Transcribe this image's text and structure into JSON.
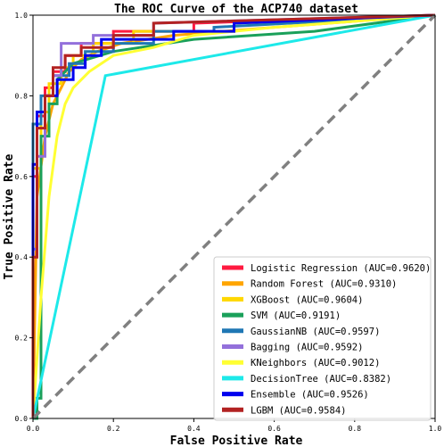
{
  "chart_data": {
    "type": "line",
    "title": "The ROC Curve of the ACP740 dataset",
    "xlabel": "False Positive Rate",
    "ylabel": "True Positive Rate",
    "xlim": [
      0,
      1
    ],
    "ylim": [
      0,
      1
    ],
    "xticks": [
      "0.0",
      "0.2",
      "0.4",
      "0.6",
      "0.8",
      "1.0"
    ],
    "yticks": [
      "0.0",
      "0.2",
      "0.4",
      "0.6",
      "0.8",
      "1.0"
    ],
    "grid": false,
    "legend_position": "bottom-right",
    "diagonal": {
      "x": [
        0,
        1
      ],
      "y": [
        0,
        1
      ],
      "color": "#808080",
      "style": "dashed"
    },
    "series": [
      {
        "name": "Logistic Regression (AUC=0.9620)",
        "color": "#ff1a40",
        "x": [
          0,
          0,
          0.01,
          0.01,
          0.03,
          0.03,
          0.05,
          0.05,
          0.08,
          0.08,
          0.12,
          0.12,
          0.2,
          0.2,
          0.4,
          0.4,
          1
        ],
        "y": [
          0,
          0.6,
          0.6,
          0.75,
          0.75,
          0.82,
          0.82,
          0.86,
          0.86,
          0.9,
          0.9,
          0.93,
          0.93,
          0.96,
          0.96,
          0.98,
          1
        ]
      },
      {
        "name": "Random Forest (AUC=0.9310)",
        "color": "#ffa500",
        "x": [
          0,
          0.01,
          0.03,
          0.05,
          0.07,
          0.09,
          0.12,
          0.16,
          0.22,
          0.35,
          0.6,
          1
        ],
        "y": [
          0,
          0.55,
          0.7,
          0.78,
          0.82,
          0.86,
          0.89,
          0.91,
          0.93,
          0.95,
          0.97,
          1
        ]
      },
      {
        "name": "XGBoost (AUC=0.9604)",
        "color": "#ffd700",
        "x": [
          0,
          0,
          0.02,
          0.02,
          0.04,
          0.04,
          0.07,
          0.07,
          0.1,
          0.1,
          0.15,
          0.15,
          0.25,
          0.25,
          0.5,
          0.5,
          1
        ],
        "y": [
          0,
          0.62,
          0.62,
          0.76,
          0.76,
          0.83,
          0.83,
          0.87,
          0.87,
          0.9,
          0.9,
          0.93,
          0.93,
          0.96,
          0.96,
          0.98,
          1
        ]
      },
      {
        "name": "SVM (AUC=0.9191)",
        "color": "#1aa05a",
        "x": [
          0,
          0.01,
          0.01,
          0.02,
          0.02,
          0.04,
          0.04,
          0.06,
          0.06,
          0.1,
          0.2,
          0.4,
          0.7,
          1
        ],
        "y": [
          0,
          0,
          0.05,
          0.05,
          0.7,
          0.7,
          0.78,
          0.78,
          0.84,
          0.88,
          0.91,
          0.94,
          0.96,
          1
        ]
      },
      {
        "name": "GaussianNB (AUC=0.9597)",
        "color": "#1f77b4",
        "x": [
          0,
          0,
          0.02,
          0.02,
          0.05,
          0.05,
          0.09,
          0.09,
          0.13,
          0.13,
          0.2,
          0.2,
          0.3,
          0.3,
          0.45,
          0.45,
          1
        ],
        "y": [
          0,
          0.73,
          0.73,
          0.8,
          0.8,
          0.85,
          0.85,
          0.88,
          0.88,
          0.91,
          0.91,
          0.93,
          0.93,
          0.96,
          0.96,
          0.97,
          1
        ]
      },
      {
        "name": "Bagging (AUC=0.9592)",
        "color": "#9370db",
        "x": [
          0,
          0,
          0.01,
          0.01,
          0.03,
          0.03,
          0.05,
          0.05,
          0.07,
          0.07,
          0.15,
          0.15,
          0.3,
          0.3,
          1
        ],
        "y": [
          0,
          0.42,
          0.42,
          0.65,
          0.65,
          0.8,
          0.8,
          0.85,
          0.85,
          0.93,
          0.93,
          0.95,
          0.95,
          0.98,
          1
        ]
      },
      {
        "name": "KNeighbors (AUC=0.9012)",
        "color": "#ffff33",
        "x": [
          0,
          0.02,
          0.04,
          0.06,
          0.08,
          0.1,
          0.14,
          0.2,
          0.3,
          0.4,
          0.6,
          1
        ],
        "y": [
          0,
          0.3,
          0.55,
          0.7,
          0.78,
          0.82,
          0.86,
          0.9,
          0.92,
          0.95,
          0.97,
          1
        ]
      },
      {
        "name": "DecisionTree (AUC=0.8382)",
        "color": "#1de9e9",
        "x": [
          0,
          0.18,
          1
        ],
        "y": [
          0,
          0.85,
          1
        ]
      },
      {
        "name": "Ensemble (AUC=0.9526)",
        "color": "#0000ee",
        "x": [
          0,
          0,
          0.01,
          0.01,
          0.03,
          0.03,
          0.06,
          0.06,
          0.1,
          0.1,
          0.13,
          0.13,
          0.17,
          0.17,
          0.35,
          0.35,
          0.5,
          0.5,
          1
        ],
        "y": [
          0,
          0.63,
          0.63,
          0.76,
          0.76,
          0.8,
          0.8,
          0.84,
          0.84,
          0.87,
          0.87,
          0.9,
          0.9,
          0.94,
          0.94,
          0.96,
          0.96,
          0.98,
          1
        ]
      },
      {
        "name": "LGBM (AUC=0.9584)",
        "color": "#b22222",
        "x": [
          0,
          0,
          0.01,
          0.01,
          0.03,
          0.03,
          0.05,
          0.05,
          0.08,
          0.08,
          0.12,
          0.12,
          0.2,
          0.2,
          0.3,
          0.3,
          1
        ],
        "y": [
          0,
          0.4,
          0.4,
          0.72,
          0.72,
          0.8,
          0.8,
          0.87,
          0.87,
          0.9,
          0.9,
          0.92,
          0.92,
          0.95,
          0.95,
          0.98,
          1
        ]
      }
    ]
  }
}
